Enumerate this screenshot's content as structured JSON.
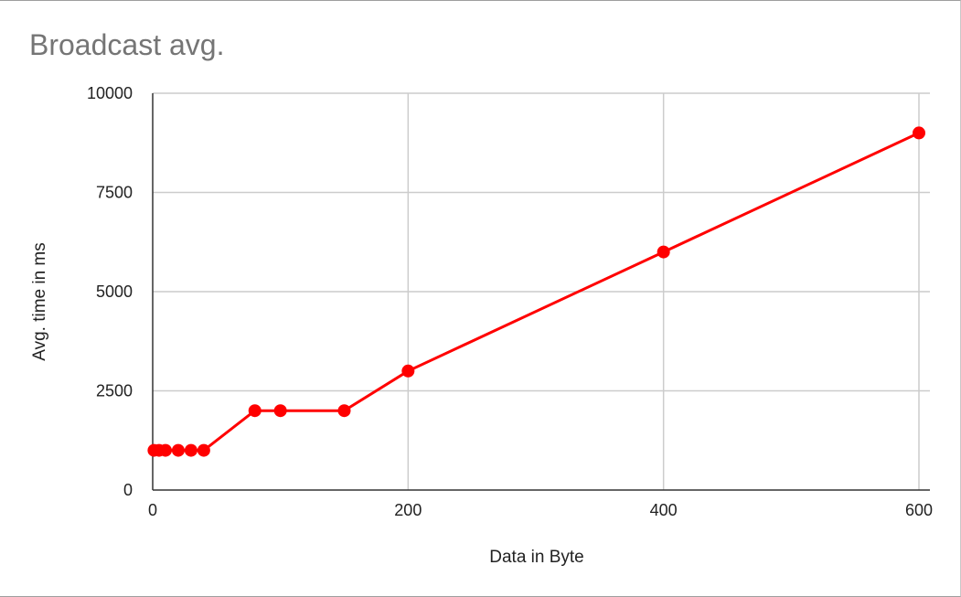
{
  "chart_data": {
    "type": "line",
    "title": "Broadcast avg.",
    "xlabel": "Data in Byte",
    "ylabel": "Avg. time in ms",
    "xlim": [
      0,
      610
    ],
    "ylim": [
      0,
      10000
    ],
    "x_ticks": [
      0,
      200,
      400,
      600
    ],
    "y_ticks": [
      0,
      2500,
      5000,
      7500,
      10000
    ],
    "x_tick_labels": [
      "0",
      "200",
      "400",
      "600"
    ],
    "y_tick_labels": [
      "0",
      "2500",
      "5000",
      "7500",
      "10000"
    ],
    "grid": true,
    "legend": "none",
    "series": [
      {
        "color": "#ff0000",
        "x": [
          1,
          5,
          10,
          20,
          30,
          40,
          80,
          100,
          150,
          200,
          400,
          600
        ],
        "y": [
          1000,
          1000,
          1000,
          1000,
          1000,
          1000,
          2000,
          2000,
          2000,
          3000,
          6000,
          9000
        ]
      }
    ]
  }
}
